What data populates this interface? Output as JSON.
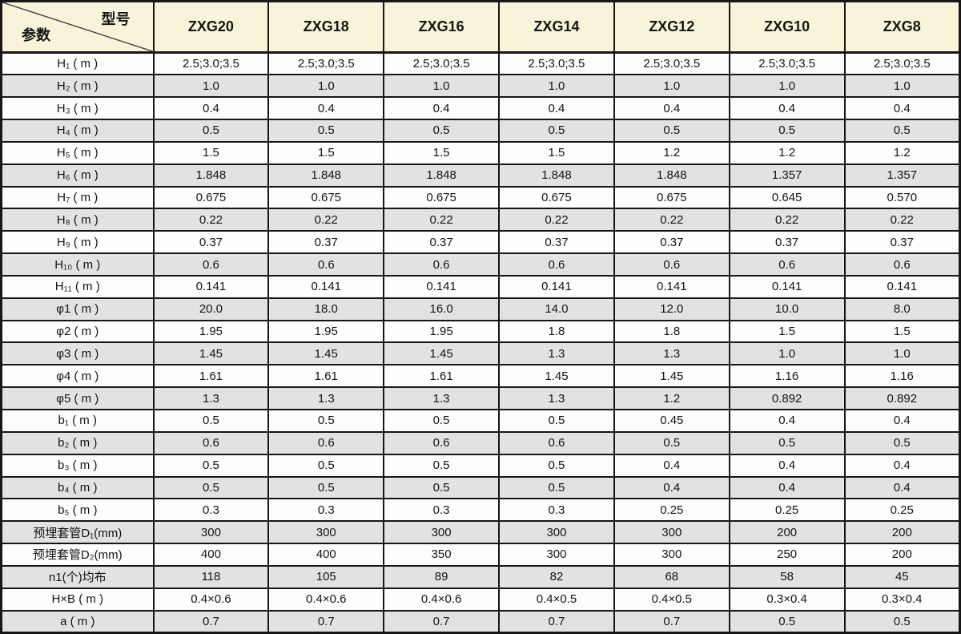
{
  "table": {
    "corner_top_right": "型号",
    "corner_bottom_left": "参数",
    "models": [
      "ZXG20",
      "ZXG18",
      "ZXG16",
      "ZXG14",
      "ZXG12",
      "ZXG10",
      "ZXG8"
    ],
    "rows": [
      {
        "param": "H₁ ( m )",
        "values": [
          "2.5;3.0;3.5",
          "2.5;3.0;3.5",
          "2.5;3.0;3.5",
          "2.5;3.0;3.5",
          "2.5;3.0;3.5",
          "2.5;3.0;3.5",
          "2.5;3.0;3.5"
        ]
      },
      {
        "param": "H₂ ( m )",
        "values": [
          "1.0",
          "1.0",
          "1.0",
          "1.0",
          "1.0",
          "1.0",
          "1.0"
        ]
      },
      {
        "param": "H₃ ( m )",
        "values": [
          "0.4",
          "0.4",
          "0.4",
          "0.4",
          "0.4",
          "0.4",
          "0.4"
        ]
      },
      {
        "param": "H₄ ( m )",
        "values": [
          "0.5",
          "0.5",
          "0.5",
          "0.5",
          "0.5",
          "0.5",
          "0.5"
        ]
      },
      {
        "param": "H₅ ( m )",
        "values": [
          "1.5",
          "1.5",
          "1.5",
          "1.5",
          "1.2",
          "1.2",
          "1.2"
        ]
      },
      {
        "param": "H₆ ( m )",
        "values": [
          "1.848",
          "1.848",
          "1.848",
          "1.848",
          "1.848",
          "1.357",
          "1.357"
        ]
      },
      {
        "param": "H₇ ( m )",
        "values": [
          "0.675",
          "0.675",
          "0.675",
          "0.675",
          "0.675",
          "0.645",
          "0.570"
        ]
      },
      {
        "param": "H₈ ( m )",
        "values": [
          "0.22",
          "0.22",
          "0.22",
          "0.22",
          "0.22",
          "0.22",
          "0.22"
        ]
      },
      {
        "param": "H₉ ( m )",
        "values": [
          "0.37",
          "0.37",
          "0.37",
          "0.37",
          "0.37",
          "0.37",
          "0.37"
        ]
      },
      {
        "param": "H₁₀ ( m )",
        "values": [
          "0.6",
          "0.6",
          "0.6",
          "0.6",
          "0.6",
          "0.6",
          "0.6"
        ]
      },
      {
        "param": "H₁₁ ( m )",
        "values": [
          "0.141",
          "0.141",
          "0.141",
          "0.141",
          "0.141",
          "0.141",
          "0.141"
        ]
      },
      {
        "param": "φ1 ( m )",
        "values": [
          "20.0",
          "18.0",
          "16.0",
          "14.0",
          "12.0",
          "10.0",
          "8.0"
        ]
      },
      {
        "param": "φ2 ( m )",
        "values": [
          "1.95",
          "1.95",
          "1.95",
          "1.8",
          "1.8",
          "1.5",
          "1.5"
        ]
      },
      {
        "param": "φ3 ( m )",
        "values": [
          "1.45",
          "1.45",
          "1.45",
          "1.3",
          "1.3",
          "1.0",
          "1.0"
        ]
      },
      {
        "param": "φ4 ( m )",
        "values": [
          "1.61",
          "1.61",
          "1.61",
          "1.45",
          "1.45",
          "1.16",
          "1.16"
        ]
      },
      {
        "param": "φ5 ( m )",
        "values": [
          "1.3",
          "1.3",
          "1.3",
          "1.3",
          "1.2",
          "0.892",
          "0.892"
        ]
      },
      {
        "param": "b₁ ( m )",
        "values": [
          "0.5",
          "0.5",
          "0.5",
          "0.5",
          "0.45",
          "0.4",
          "0.4"
        ]
      },
      {
        "param": "b₂ ( m )",
        "values": [
          "0.6",
          "0.6",
          "0.6",
          "0.6",
          "0.5",
          "0.5",
          "0.5"
        ]
      },
      {
        "param": "b₃ ( m )",
        "values": [
          "0.5",
          "0.5",
          "0.5",
          "0.5",
          "0.4",
          "0.4",
          "0.4"
        ]
      },
      {
        "param": "b₄ ( m )",
        "values": [
          "0.5",
          "0.5",
          "0.5",
          "0.5",
          "0.4",
          "0.4",
          "0.4"
        ]
      },
      {
        "param": "b₅ ( m )",
        "values": [
          "0.3",
          "0.3",
          "0.3",
          "0.3",
          "0.25",
          "0.25",
          "0.25"
        ]
      },
      {
        "param": "预埋套管D₁(mm)",
        "values": [
          "300",
          "300",
          "300",
          "300",
          "300",
          "200",
          "200"
        ]
      },
      {
        "param": "预埋套管D₂(mm)",
        "values": [
          "400",
          "400",
          "350",
          "300",
          "300",
          "250",
          "200"
        ]
      },
      {
        "param": "n1(个)均布",
        "values": [
          "118",
          "105",
          "89",
          "82",
          "68",
          "58",
          "45"
        ]
      },
      {
        "param": "H×B ( m )",
        "values": [
          "0.4×0.6",
          "0.4×0.6",
          "0.4×0.6",
          "0.4×0.5",
          "0.4×0.5",
          "0.3×0.4",
          "0.3×0.4"
        ]
      },
      {
        "param": "a ( m )",
        "values": [
          "0.7",
          "0.7",
          "0.7",
          "0.7",
          "0.7",
          "0.5",
          "0.5"
        ]
      }
    ]
  },
  "colors": {
    "header_bg": "#f8f4da",
    "row_bg": "#fdfdfd",
    "row_alt_bg": "#e2e2e2",
    "border": "#161616",
    "text": "#141414"
  },
  "chart_data": {
    "type": "table",
    "title": "",
    "columns": [
      "参数/型号",
      "ZXG20",
      "ZXG18",
      "ZXG16",
      "ZXG14",
      "ZXG12",
      "ZXG10",
      "ZXG8"
    ],
    "rows": [
      [
        "H₁ ( m )",
        "2.5;3.0;3.5",
        "2.5;3.0;3.5",
        "2.5;3.0;3.5",
        "2.5;3.0;3.5",
        "2.5;3.0;3.5",
        "2.5;3.0;3.5",
        "2.5;3.0;3.5"
      ],
      [
        "H₂ ( m )",
        "1.0",
        "1.0",
        "1.0",
        "1.0",
        "1.0",
        "1.0",
        "1.0"
      ],
      [
        "H₃ ( m )",
        "0.4",
        "0.4",
        "0.4",
        "0.4",
        "0.4",
        "0.4",
        "0.4"
      ],
      [
        "H₄ ( m )",
        "0.5",
        "0.5",
        "0.5",
        "0.5",
        "0.5",
        "0.5",
        "0.5"
      ],
      [
        "H₅ ( m )",
        "1.5",
        "1.5",
        "1.5",
        "1.5",
        "1.2",
        "1.2",
        "1.2"
      ],
      [
        "H₆ ( m )",
        "1.848",
        "1.848",
        "1.848",
        "1.848",
        "1.848",
        "1.357",
        "1.357"
      ],
      [
        "H₇ ( m )",
        "0.675",
        "0.675",
        "0.675",
        "0.675",
        "0.675",
        "0.645",
        "0.570"
      ],
      [
        "H₈ ( m )",
        "0.22",
        "0.22",
        "0.22",
        "0.22",
        "0.22",
        "0.22",
        "0.22"
      ],
      [
        "H₉ ( m )",
        "0.37",
        "0.37",
        "0.37",
        "0.37",
        "0.37",
        "0.37",
        "0.37"
      ],
      [
        "H₁₀ ( m )",
        "0.6",
        "0.6",
        "0.6",
        "0.6",
        "0.6",
        "0.6",
        "0.6"
      ],
      [
        "H₁₁ ( m )",
        "0.141",
        "0.141",
        "0.141",
        "0.141",
        "0.141",
        "0.141",
        "0.141"
      ],
      [
        "φ1 ( m )",
        "20.0",
        "18.0",
        "16.0",
        "14.0",
        "12.0",
        "10.0",
        "8.0"
      ],
      [
        "φ2 ( m )",
        "1.95",
        "1.95",
        "1.95",
        "1.8",
        "1.8",
        "1.5",
        "1.5"
      ],
      [
        "φ3 ( m )",
        "1.45",
        "1.45",
        "1.45",
        "1.3",
        "1.3",
        "1.0",
        "1.0"
      ],
      [
        "φ4 ( m )",
        "1.61",
        "1.61",
        "1.61",
        "1.45",
        "1.45",
        "1.16",
        "1.16"
      ],
      [
        "φ5 ( m )",
        "1.3",
        "1.3",
        "1.3",
        "1.3",
        "1.2",
        "0.892",
        "0.892"
      ],
      [
        "b₁ ( m )",
        "0.5",
        "0.5",
        "0.5",
        "0.5",
        "0.45",
        "0.4",
        "0.4"
      ],
      [
        "b₂ ( m )",
        "0.6",
        "0.6",
        "0.6",
        "0.6",
        "0.5",
        "0.5",
        "0.5"
      ],
      [
        "b₃ ( m )",
        "0.5",
        "0.5",
        "0.5",
        "0.5",
        "0.4",
        "0.4",
        "0.4"
      ],
      [
        "b₄ ( m )",
        "0.5",
        "0.5",
        "0.5",
        "0.5",
        "0.4",
        "0.4",
        "0.4"
      ],
      [
        "b₅ ( m )",
        "0.3",
        "0.3",
        "0.3",
        "0.3",
        "0.25",
        "0.25",
        "0.25"
      ],
      [
        "预埋套管D₁(mm)",
        "300",
        "300",
        "300",
        "300",
        "300",
        "200",
        "200"
      ],
      [
        "预埋套管D₂(mm)",
        "400",
        "400",
        "350",
        "300",
        "300",
        "250",
        "200"
      ],
      [
        "n1(个)均布",
        "118",
        "105",
        "89",
        "82",
        "68",
        "58",
        "45"
      ],
      [
        "H×B ( m )",
        "0.4×0.6",
        "0.4×0.6",
        "0.4×0.6",
        "0.4×0.5",
        "0.4×0.5",
        "0.3×0.4",
        "0.3×0.4"
      ],
      [
        "a ( m )",
        "0.7",
        "0.7",
        "0.7",
        "0.7",
        "0.7",
        "0.5",
        "0.5"
      ]
    ]
  }
}
